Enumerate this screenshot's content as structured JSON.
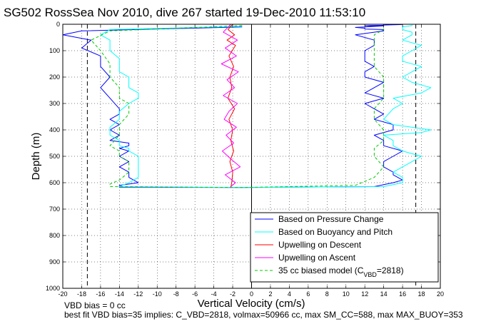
{
  "chart_data": {
    "type": "line",
    "title": "SG502 RossSea Nov 2010, dive 267 started 19-Dec-2010 11:53:10",
    "xlabel": "Vertical Velocity (cm/s)",
    "ylabel": "Depth (m)",
    "xlim": [
      -20,
      20
    ],
    "ylim": [
      0,
      1000
    ],
    "y_reversed": true,
    "grid": true,
    "xticks": [
      -20,
      -18,
      -16,
      -14,
      -12,
      -10,
      -8,
      -6,
      -4,
      -2,
      0,
      2,
      4,
      6,
      8,
      10,
      12,
      14,
      16,
      18,
      20
    ],
    "yticks": [
      0,
      100,
      200,
      300,
      400,
      500,
      600,
      700,
      800,
      900,
      1000
    ],
    "legend_position": "bottom-right",
    "reference_lines": {
      "x_dashed": [
        -17.4,
        17.4
      ],
      "x_solid": [
        0
      ]
    },
    "series": [
      {
        "name": "Based on Pressure Change",
        "color": "#0000ff",
        "style": "solid",
        "x": [
          -1,
          -18,
          -20,
          -17,
          -18,
          -16,
          -16,
          -15,
          -16,
          -15,
          -14,
          -14,
          -15,
          -14,
          -15,
          -14,
          -15,
          -13,
          -13,
          -14,
          -13,
          -14,
          -13,
          -14,
          -13,
          -13,
          -12,
          -14,
          -14,
          -1,
          13,
          15,
          16,
          15,
          15,
          14,
          14,
          15,
          16,
          14,
          14,
          13,
          15,
          15,
          13,
          14,
          13,
          12,
          14,
          12,
          13,
          14,
          12,
          12,
          13,
          12,
          12,
          12,
          13,
          13,
          11,
          13,
          14,
          14,
          12,
          12,
          11,
          12,
          13,
          14,
          12,
          14,
          14,
          15,
          16,
          15,
          12
        ],
        "y": [
          10,
          25,
          40,
          60,
          90,
          120,
          160,
          200,
          240,
          280,
          320,
          340,
          360,
          380,
          400,
          420,
          440,
          450,
          460,
          470,
          480,
          500,
          520,
          540,
          560,
          580,
          600,
          610,
          617,
          618,
          615,
          600,
          590,
          570,
          560,
          540,
          520,
          500,
          480,
          460,
          440,
          420,
          400,
          380,
          360,
          340,
          320,
          300,
          280,
          260,
          240,
          220,
          200,
          180,
          160,
          140,
          120,
          100,
          80,
          60,
          40,
          30,
          25,
          20,
          18,
          15,
          12,
          10,
          8,
          6,
          5,
          4,
          3,
          2,
          1,
          0,
          10
        ]
      },
      {
        "name": "Based on Buoyancy and Pitch",
        "color": "#00ffff",
        "style": "solid",
        "x": [
          -1,
          -15,
          -16,
          -15,
          -15,
          -14,
          -14,
          -13,
          -13,
          -12,
          -12,
          -13,
          -14,
          -14,
          -15,
          -15,
          -14,
          -14,
          -13,
          -13,
          -12,
          -12,
          -12,
          -12,
          -13,
          -14,
          -1,
          14,
          16,
          16,
          15,
          16,
          17,
          18,
          16,
          15,
          15,
          14,
          18,
          19,
          15,
          14,
          15,
          16,
          15,
          18,
          19,
          17,
          16,
          17,
          18,
          16,
          16,
          17,
          18,
          16,
          17,
          17,
          16,
          16,
          17,
          17
        ],
        "y": [
          8,
          20,
          40,
          60,
          100,
          130,
          180,
          200,
          240,
          260,
          280,
          300,
          330,
          360,
          390,
          420,
          440,
          460,
          470,
          480,
          500,
          520,
          550,
          580,
          600,
          615,
          618,
          615,
          600,
          580,
          560,
          540,
          520,
          500,
          480,
          460,
          440,
          420,
          410,
          400,
          380,
          360,
          320,
          300,
          280,
          260,
          240,
          220,
          200,
          180,
          160,
          140,
          120,
          100,
          80,
          60,
          40,
          30,
          20,
          10,
          5,
          2
        ]
      },
      {
        "name": "Upwelling on Descent",
        "color": "#ff0000",
        "style": "solid",
        "x": [
          -2,
          -2.5,
          -1.8,
          -2.6,
          -1.7,
          -2.4,
          -1.9,
          -2.3,
          -2.1,
          -2.5,
          -1.8,
          -2.4,
          -2,
          -2.2,
          -1.9,
          -2.3,
          -2,
          -2.1,
          -2.2
        ],
        "y": [
          0,
          20,
          40,
          60,
          80,
          120,
          160,
          200,
          240,
          280,
          320,
          360,
          400,
          440,
          480,
          520,
          560,
          600,
          618
        ]
      },
      {
        "name": "Upwelling on Ascent",
        "color": "#ff00ff",
        "style": "solid",
        "x": [
          -2.2,
          -3,
          -1.5,
          -2.8,
          -1.6,
          -3.2,
          -1.4,
          -2.6,
          -1.8,
          -3,
          -1.5,
          -2.4,
          -2.9,
          -1.6,
          -2.7,
          -1.9,
          -3.1,
          -2.2,
          -1.2,
          -2.8,
          -1.7,
          -2.3
        ],
        "y": [
          0,
          30,
          60,
          90,
          120,
          150,
          180,
          210,
          240,
          270,
          300,
          330,
          360,
          390,
          420,
          450,
          480,
          510,
          540,
          570,
          600,
          618
        ]
      },
      {
        "name": "35 cc biased model (C_VBD=2818)",
        "color": "#00cc00",
        "style": "dashed",
        "x": [
          -1,
          -15,
          -17,
          -16,
          -15,
          -15,
          -14,
          -14,
          -13,
          -13,
          -14,
          -14,
          -15,
          -14,
          -14,
          -13,
          -13,
          -14,
          -15,
          -15,
          -1,
          11,
          13,
          14,
          13,
          13,
          14,
          14,
          13,
          13,
          14,
          14,
          14,
          13,
          13,
          13,
          13,
          14,
          14
        ],
        "y": [
          5,
          25,
          60,
          100,
          150,
          200,
          240,
          280,
          300,
          340,
          380,
          420,
          460,
          480,
          500,
          520,
          560,
          590,
          605,
          615,
          618,
          610,
          580,
          540,
          500,
          470,
          440,
          400,
          360,
          320,
          280,
          240,
          200,
          160,
          120,
          80,
          40,
          20,
          5
        ]
      }
    ]
  },
  "legend": {
    "entries": [
      {
        "label": "Based on Pressure Change",
        "color": "#0000ff",
        "dash": false
      },
      {
        "label": "Based on Buoyancy and Pitch",
        "color": "#00ffff",
        "dash": false
      },
      {
        "label": "Upwelling on Descent",
        "color": "#ff0000",
        "dash": false
      },
      {
        "label": "Upwelling on Ascent",
        "color": "#ff00ff",
        "dash": false
      },
      {
        "label": "35 cc biased model (C",
        "sub": "VBD",
        "tail": "=2818)",
        "color": "#00cc00",
        "dash": true
      }
    ]
  },
  "footnotes": {
    "line1": "VBD bias = 0 cc",
    "line2": "best fit VBD bias=35 implies: C_VBD=2818, volmax=50966 cc, max SM_CC=588, max MAX_BUOY=353"
  }
}
